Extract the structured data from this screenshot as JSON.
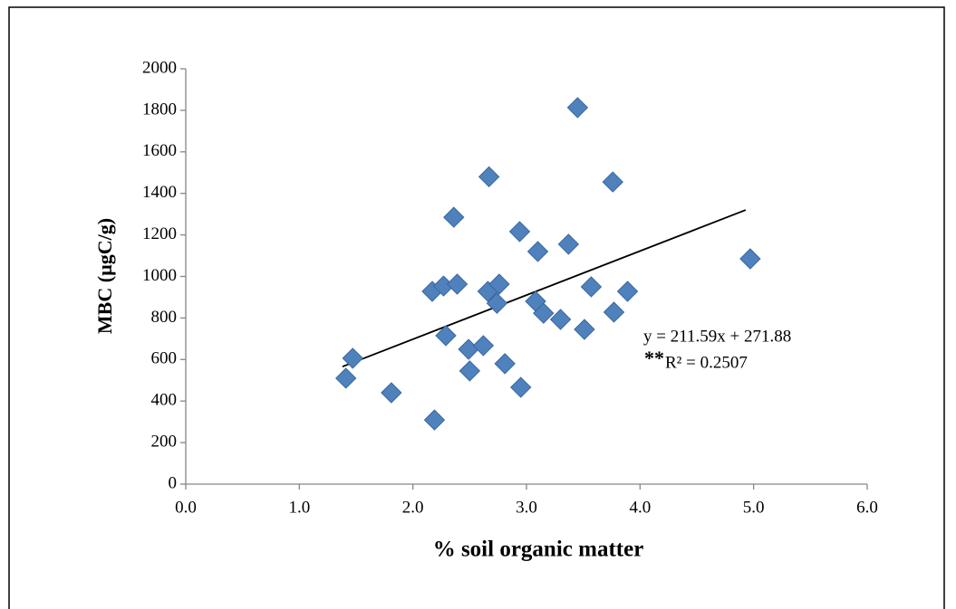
{
  "chart_data": {
    "type": "scatter",
    "x_label": "% soil organic matter",
    "y_label": "MBC (µgC/g)",
    "color": "#4f81bd",
    "x": [
      1.41,
      1.47,
      1.81,
      2.19,
      2.17,
      2.27,
      2.29,
      2.39,
      2.36,
      2.49,
      2.5,
      2.62,
      2.67,
      2.66,
      2.76,
      2.74,
      2.81,
      2.94,
      2.95,
      3.08,
      3.1,
      3.15,
      3.3,
      3.37,
      3.45,
      3.51,
      3.57,
      3.77,
      3.76,
      3.89,
      4.97
    ],
    "values": [
      510,
      606,
      440,
      309,
      928,
      954,
      715,
      963,
      1285,
      649,
      545,
      667,
      1480,
      928,
      963,
      871,
      580,
      1216,
      466,
      880,
      1120,
      823,
      793,
      1155,
      1813,
      745,
      950,
      828,
      1455,
      928,
      1085
    ],
    "xlim": [
      0,
      6
    ],
    "xticks": [
      {
        "value": 0,
        "label": "0.0"
      },
      {
        "value": 1,
        "label": "1.0"
      },
      {
        "value": 2,
        "label": "2.0"
      },
      {
        "value": 3,
        "label": "3.0"
      },
      {
        "value": 4,
        "label": "4.0"
      },
      {
        "value": 5,
        "label": "5.0"
      },
      {
        "value": 6,
        "label": "6.0"
      }
    ],
    "ylim": [
      0,
      2000
    ],
    "yticks": [
      0,
      200,
      400,
      600,
      800,
      1000,
      1200,
      1400,
      1600,
      1800,
      2000
    ],
    "trendline": {
      "x": [
        1.38,
        4.93
      ],
      "y": [
        566,
        1320
      ],
      "color": "#000000",
      "equation": "y = 211.59x + 271.88",
      "significance": "**",
      "r2": "R² = 0.2507"
    }
  }
}
